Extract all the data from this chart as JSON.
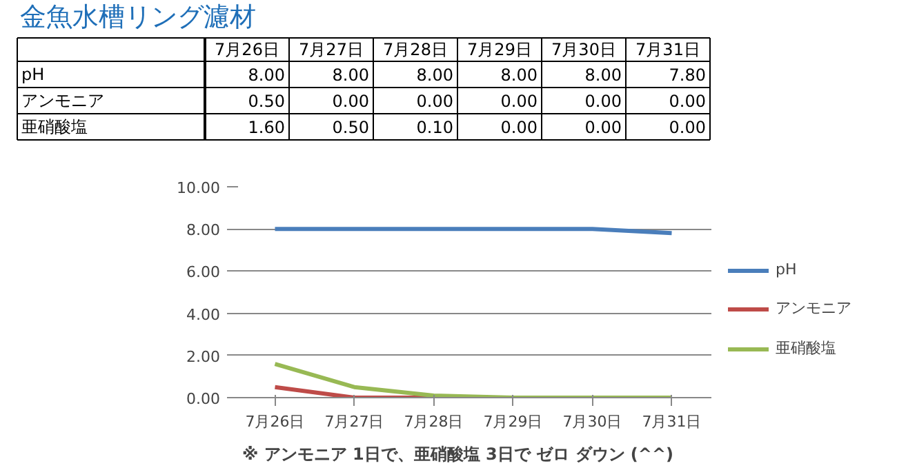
{
  "chart_data": {
    "type": "line",
    "title": "金魚水槽リング濾材",
    "categories": [
      "7月26日",
      "7月27日",
      "7月28日",
      "7月29日",
      "7月30日",
      "7月31日"
    ],
    "series": [
      {
        "name": "pH",
        "color": "#4a7ebb",
        "values": [
          8.0,
          8.0,
          8.0,
          8.0,
          8.0,
          7.8
        ],
        "value_labels": [
          "8.00",
          "8.00",
          "8.00",
          "8.00",
          "8.00",
          "7.80"
        ]
      },
      {
        "name": "アンモニア",
        "color": "#be4b48",
        "values": [
          0.5,
          0.0,
          0.0,
          0.0,
          null,
          null
        ],
        "value_labels": [
          "0.50",
          "0.00",
          "0.00",
          "0.00",
          "0.00",
          "0.00"
        ]
      },
      {
        "name": "亜硝酸塩",
        "color": "#98b954",
        "values": [
          1.6,
          0.5,
          0.1,
          0.0,
          0.0,
          0.0
        ],
        "value_labels": [
          "1.60",
          "0.50",
          "0.10",
          "0.00",
          "0.00",
          "0.00"
        ]
      }
    ],
    "ylim": [
      0,
      10
    ],
    "yticks": [
      {
        "value": 0,
        "label": "0.00"
      },
      {
        "value": 2,
        "label": "2.00"
      },
      {
        "value": 4,
        "label": "4.00"
      },
      {
        "value": 6,
        "label": "6.00"
      },
      {
        "value": 8,
        "label": "8.00"
      },
      {
        "value": 10,
        "label": "10.00"
      }
    ],
    "grid": "y",
    "legend": "right",
    "marker": "none",
    "line_style": "solid",
    "annotations": [
      "※ アンモニア 1日で、亜硝酸塩 3日で ゼロ ダウン (^^)"
    ]
  }
}
